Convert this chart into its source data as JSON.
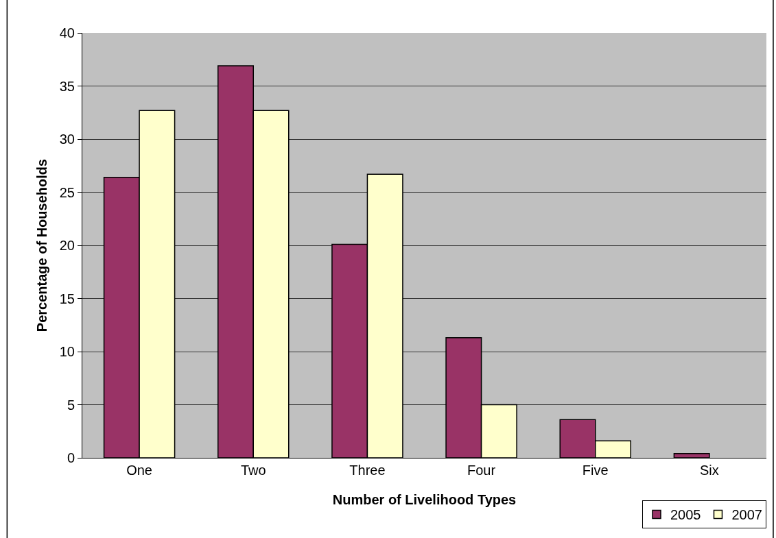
{
  "chart_data": {
    "type": "bar",
    "xlabel": "Number of Livelihood Types",
    "ylabel": "Percentage of Households",
    "categories": [
      "One",
      "Two",
      "Three",
      "Four",
      "Five",
      "Six"
    ],
    "series": [
      {
        "name": "2005",
        "color": "#993366",
        "values": [
          26.4,
          36.9,
          20.1,
          11.3,
          3.6,
          0.4
        ]
      },
      {
        "name": "2007",
        "color": "#ffffcc",
        "values": [
          32.7,
          32.7,
          26.7,
          5.0,
          1.6,
          null
        ]
      }
    ],
    "ylim": [
      0,
      40
    ],
    "yticks": [
      0,
      5,
      10,
      15,
      20,
      25,
      30,
      35,
      40
    ],
    "grid": "y",
    "legend": "bottom right"
  }
}
